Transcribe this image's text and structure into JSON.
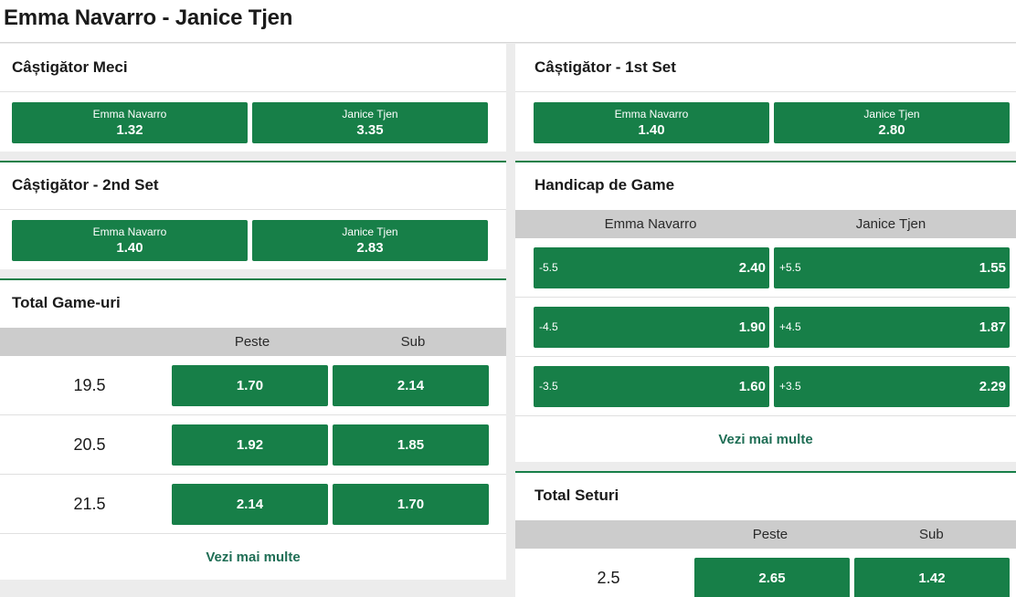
{
  "header": {
    "title": "Emma Navarro - Janice Tjen"
  },
  "match_winner": {
    "title": "Câștigător Meci",
    "options": [
      {
        "name": "Emma Navarro",
        "odd": "1.32"
      },
      {
        "name": "Janice Tjen",
        "odd": "3.35"
      }
    ]
  },
  "set2_winner": {
    "title": "Câștigător - 2nd Set",
    "options": [
      {
        "name": "Emma Navarro",
        "odd": "1.40"
      },
      {
        "name": "Janice Tjen",
        "odd": "2.83"
      }
    ]
  },
  "total_games": {
    "title": "Total Game-uri",
    "headers": [
      "Peste",
      "Sub"
    ],
    "rows": [
      {
        "line": "19.5",
        "over": "1.70",
        "under": "2.14"
      },
      {
        "line": "20.5",
        "over": "1.92",
        "under": "1.85"
      },
      {
        "line": "21.5",
        "over": "2.14",
        "under": "1.70"
      }
    ],
    "more": "Vezi mai multe"
  },
  "set1_winner": {
    "title": "Câștigător - 1st Set",
    "options": [
      {
        "name": "Emma Navarro",
        "odd": "1.40"
      },
      {
        "name": "Janice Tjen",
        "odd": "2.80"
      }
    ]
  },
  "game_handicap": {
    "title": "Handicap de Game",
    "headers": [
      "Emma Navarro",
      "Janice Tjen"
    ],
    "rows": [
      {
        "home_line": "-5.5",
        "home_odd": "2.40",
        "away_line": "+5.5",
        "away_odd": "1.55"
      },
      {
        "home_line": "-4.5",
        "home_odd": "1.90",
        "away_line": "+4.5",
        "away_odd": "1.87"
      },
      {
        "home_line": "-3.5",
        "home_odd": "1.60",
        "away_line": "+3.5",
        "away_odd": "2.29"
      }
    ],
    "more": "Vezi mai multe"
  },
  "total_sets": {
    "title": "Total Seturi",
    "headers": [
      "Peste",
      "Sub"
    ],
    "rows": [
      {
        "line": "2.5",
        "over": "2.65",
        "under": "1.42"
      }
    ]
  },
  "colors": {
    "accent": "#177f48",
    "link": "#1f6e55",
    "subheader": "#cccccc"
  }
}
